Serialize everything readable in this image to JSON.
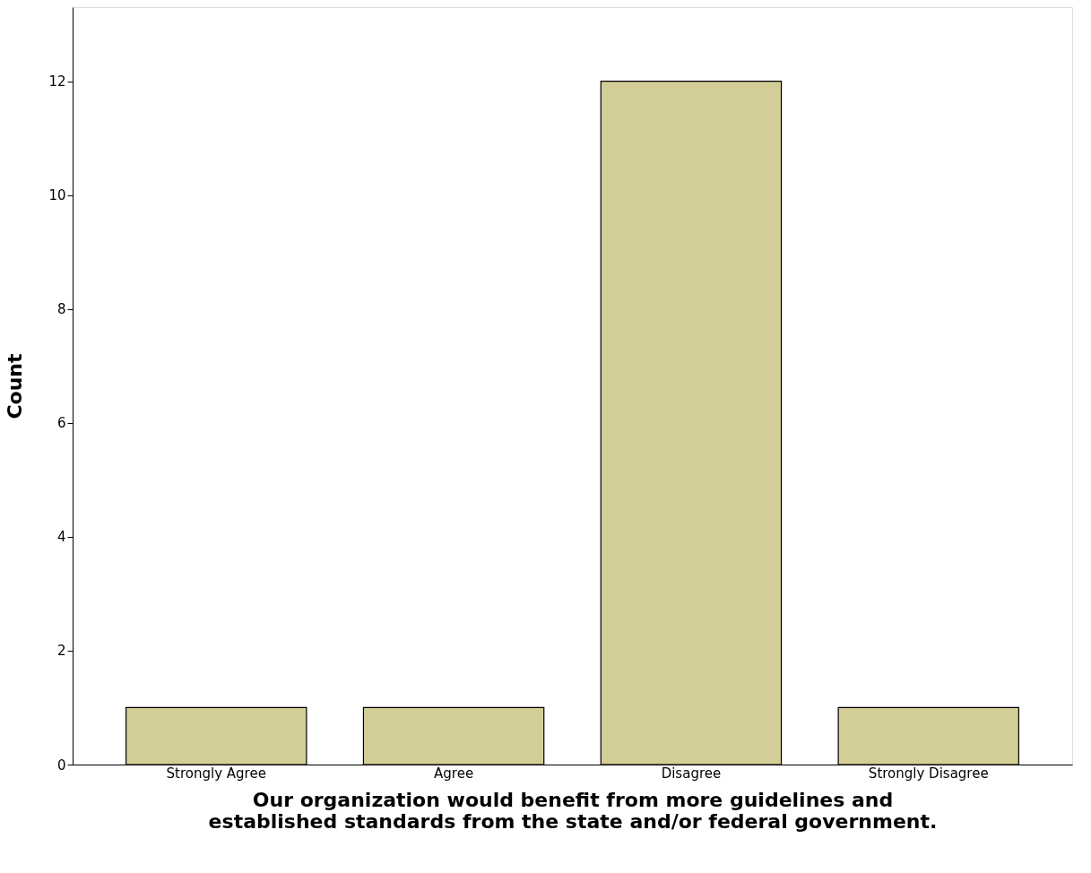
{
  "chart_data": {
    "type": "bar",
    "xlabel": "Our organization would benefit from more guidelines and\nestablished standards from the state and/or federal government.",
    "ylabel": "Count",
    "categories": [
      "Strongly Agree",
      "Agree",
      "Disagree",
      "Strongly Disagree"
    ],
    "values": [
      1,
      1,
      12,
      1
    ],
    "color": "#d3cd97",
    "ylim": [
      0,
      13.3
    ],
    "yticks": [
      0,
      2,
      4,
      6,
      8,
      10,
      12
    ],
    "grid": false
  }
}
